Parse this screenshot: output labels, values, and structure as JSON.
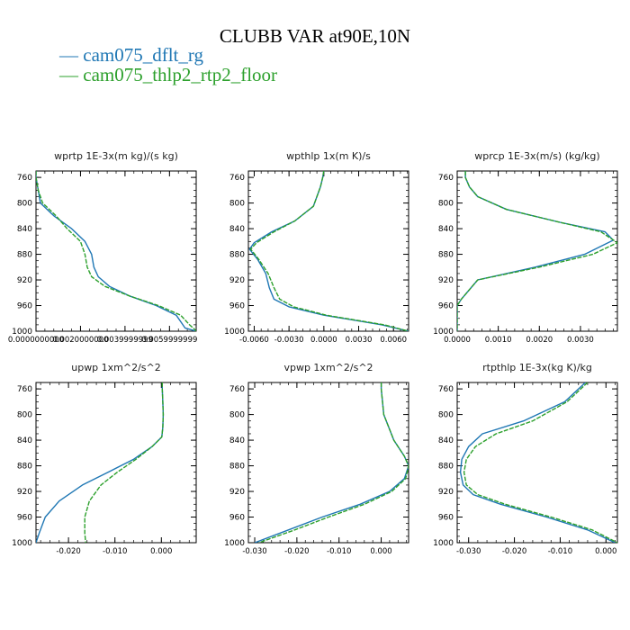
{
  "figure": {
    "title": "CLUBB VAR at90E,10N",
    "legend": [
      {
        "prefix": "— ",
        "label": "cam075_dflt_rg",
        "color": "#1f77b4"
      },
      {
        "prefix": "— ",
        "label": "cam075_thlp2_rtp2_floor",
        "color": "#2ca02c"
      }
    ]
  },
  "chart_data": [
    {
      "type": "line",
      "title": "wprtp  1E-3x(m kg)/(s kg)",
      "xlim": [
        0,
        0.0072
      ],
      "ylim": [
        1000,
        750
      ],
      "xticks": [
        0,
        0.002,
        0.004,
        0.006
      ],
      "xtick_labels": [
        "0.0000000000",
        "0.0020000000",
        "0.0039999999",
        "0.0059999999"
      ],
      "yticks": [
        760,
        800,
        840,
        880,
        920,
        960,
        1000
      ],
      "series": [
        {
          "name": "cam075_dflt_rg",
          "color": "#1f77b4",
          "dashed": false,
          "points": [
            [
              0.0,
              750
            ],
            [
              0.0,
              760
            ],
            [
              0.0001,
              780
            ],
            [
              0.0002,
              800
            ],
            [
              0.0008,
              820
            ],
            [
              0.0016,
              840
            ],
            [
              0.0022,
              860
            ],
            [
              0.0025,
              880
            ],
            [
              0.0026,
              900
            ],
            [
              0.0028,
              915
            ],
            [
              0.0033,
              930
            ],
            [
              0.0042,
              945
            ],
            [
              0.0054,
              960
            ],
            [
              0.0063,
              975
            ],
            [
              0.0066,
              990
            ],
            [
              0.0067,
              995
            ],
            [
              0.0072,
              1000
            ]
          ]
        },
        {
          "name": "cam075_thlp2_rtp2_floor",
          "color": "#2ca02c",
          "dashed": true,
          "points": [
            [
              0.0,
              750
            ],
            [
              0.0,
              760
            ],
            [
              0.0001,
              780
            ],
            [
              0.0003,
              800
            ],
            [
              0.0009,
              820
            ],
            [
              0.0014,
              840
            ],
            [
              0.002,
              860
            ],
            [
              0.0022,
              880
            ],
            [
              0.0023,
              900
            ],
            [
              0.0025,
              915
            ],
            [
              0.0031,
              930
            ],
            [
              0.0042,
              945
            ],
            [
              0.0055,
              960
            ],
            [
              0.0065,
              975
            ],
            [
              0.0069,
              990
            ],
            [
              0.0071,
              996
            ],
            [
              0.0072,
              1000
            ]
          ]
        }
      ]
    },
    {
      "type": "line",
      "title": "wpthlp  1x(m K)/s",
      "xlim": [
        -0.0065,
        0.0073
      ],
      "ylim": [
        1000,
        750
      ],
      "xticks": [
        -0.006,
        -0.003,
        0,
        0.003,
        0.006
      ],
      "xtick_labels": [
        "-0.0060",
        "-0.0030",
        "0.0000",
        "0.0030",
        "0.0060"
      ],
      "yticks": [
        760,
        800,
        840,
        880,
        920,
        960,
        1000
      ],
      "series": [
        {
          "name": "cam075_dflt_rg",
          "color": "#1f77b4",
          "dashed": false,
          "points": [
            [
              0.0,
              750
            ],
            [
              -0.0001,
              760
            ],
            [
              -0.0003,
              775
            ],
            [
              -0.0009,
              805
            ],
            [
              -0.0025,
              828
            ],
            [
              -0.0045,
              845
            ],
            [
              -0.006,
              862
            ],
            [
              -0.0064,
              872
            ],
            [
              -0.0057,
              888
            ],
            [
              -0.005,
              910
            ],
            [
              -0.0047,
              932
            ],
            [
              -0.0043,
              950
            ],
            [
              -0.003,
              962
            ],
            [
              0.0,
              975
            ],
            [
              0.005,
              990
            ],
            [
              0.0073,
              1000
            ]
          ]
        },
        {
          "name": "cam075_thlp2_rtp2_floor",
          "color": "#2ca02c",
          "dashed": true,
          "points": [
            [
              0.0,
              750
            ],
            [
              -0.0001,
              760
            ],
            [
              -0.0003,
              775
            ],
            [
              -0.0009,
              805
            ],
            [
              -0.0025,
              828
            ],
            [
              -0.0043,
              845
            ],
            [
              -0.0058,
              862
            ],
            [
              -0.0063,
              872
            ],
            [
              -0.0056,
              888
            ],
            [
              -0.0048,
              910
            ],
            [
              -0.0043,
              932
            ],
            [
              -0.0038,
              950
            ],
            [
              -0.0026,
              962
            ],
            [
              0.0002,
              975
            ],
            [
              0.0052,
              990
            ],
            [
              0.0073,
              1000
            ]
          ]
        }
      ]
    },
    {
      "type": "line",
      "title": "wprcp  1E-3x(m/s) (kg/kg)",
      "xlim": [
        0,
        0.0039
      ],
      "ylim": [
        1000,
        750
      ],
      "xticks": [
        0,
        0.001,
        0.002,
        0.003
      ],
      "xtick_labels": [
        "0.0000",
        "0.0010",
        "0.0020",
        "0.0030"
      ],
      "yticks": [
        760,
        800,
        840,
        880,
        920,
        960,
        1000
      ],
      "series": [
        {
          "name": "cam075_dflt_rg",
          "color": "#1f77b4",
          "dashed": false,
          "points": [
            [
              0.0002,
              750
            ],
            [
              0.0002,
              760
            ],
            [
              0.0003,
              775
            ],
            [
              0.0005,
              790
            ],
            [
              0.0012,
              810
            ],
            [
              0.0025,
              830
            ],
            [
              0.0036,
              845
            ],
            [
              0.0038,
              858
            ],
            [
              0.0031,
              880
            ],
            [
              0.0019,
              900
            ],
            [
              0.0005,
              920
            ],
            [
              0.0001,
              950
            ],
            [
              0.0,
              960
            ],
            [
              0.0,
              1000
            ]
          ]
        },
        {
          "name": "cam075_thlp2_rtp2_floor",
          "color": "#2ca02c",
          "dashed": true,
          "points": [
            [
              0.0002,
              750
            ],
            [
              0.0002,
              760
            ],
            [
              0.0003,
              775
            ],
            [
              0.0005,
              790
            ],
            [
              0.0012,
              810
            ],
            [
              0.0025,
              830
            ],
            [
              0.0035,
              845
            ],
            [
              0.0039,
              862
            ],
            [
              0.0033,
              880
            ],
            [
              0.002,
              900
            ],
            [
              0.0005,
              920
            ],
            [
              0.0001,
              950
            ],
            [
              0.0,
              960
            ],
            [
              0.0,
              1000
            ]
          ]
        }
      ]
    },
    {
      "type": "line",
      "title": "upwp  1xm^2/s^2",
      "xlim": [
        -0.027,
        0.0075
      ],
      "ylim": [
        1000,
        750
      ],
      "xticks": [
        -0.02,
        -0.01,
        0
      ],
      "xtick_labels": [
        "-0.020",
        "-0.010",
        "0.000"
      ],
      "yticks": [
        760,
        800,
        840,
        880,
        920,
        960,
        1000
      ],
      "series": [
        {
          "name": "cam075_dflt_rg",
          "color": "#1f77b4",
          "dashed": false,
          "points": [
            [
              0.0002,
              750
            ],
            [
              0.0002,
              760
            ],
            [
              0.0003,
              780
            ],
            [
              0.0004,
              800
            ],
            [
              0.0003,
              820
            ],
            [
              0.0001,
              835
            ],
            [
              -0.002,
              850
            ],
            [
              -0.006,
              870
            ],
            [
              -0.0115,
              890
            ],
            [
              -0.017,
              910
            ],
            [
              -0.022,
              935
            ],
            [
              -0.025,
              960
            ],
            [
              -0.0263,
              985
            ],
            [
              -0.027,
              1000
            ]
          ]
        },
        {
          "name": "cam075_thlp2_rtp2_floor",
          "color": "#2ca02c",
          "dashed": true,
          "points": [
            [
              0.0002,
              750
            ],
            [
              0.0002,
              760
            ],
            [
              0.0003,
              780
            ],
            [
              0.0004,
              800
            ],
            [
              0.0003,
              820
            ],
            [
              0.0001,
              835
            ],
            [
              -0.002,
              850
            ],
            [
              -0.0055,
              870
            ],
            [
              -0.0095,
              890
            ],
            [
              -0.013,
              910
            ],
            [
              -0.0155,
              935
            ],
            [
              -0.0165,
              960
            ],
            [
              -0.0165,
              985
            ],
            [
              -0.0163,
              1000
            ]
          ]
        }
      ]
    },
    {
      "type": "line",
      "title": "vpwp  1xm^2/s^2",
      "xlim": [
        -0.0315,
        0.0065
      ],
      "ylim": [
        1000,
        750
      ],
      "xticks": [
        -0.03,
        -0.02,
        -0.01,
        0
      ],
      "xtick_labels": [
        "-0.030",
        "-0.020",
        "-0.010",
        "0.000"
      ],
      "yticks": [
        760,
        800,
        840,
        880,
        920,
        960,
        1000
      ],
      "series": [
        {
          "name": "cam075_dflt_rg",
          "color": "#1f77b4",
          "dashed": false,
          "points": [
            [
              0.0,
              750
            ],
            [
              0.0,
              760
            ],
            [
              0.0006,
              800
            ],
            [
              0.003,
              840
            ],
            [
              0.0055,
              865
            ],
            [
              0.0065,
              880
            ],
            [
              0.0055,
              900
            ],
            [
              0.002,
              920
            ],
            [
              -0.005,
              940
            ],
            [
              -0.014,
              960
            ],
            [
              -0.022,
              980
            ],
            [
              -0.03,
              1000
            ]
          ]
        },
        {
          "name": "cam075_thlp2_rtp2_floor",
          "color": "#2ca02c",
          "dashed": true,
          "points": [
            [
              0.0,
              750
            ],
            [
              0.0,
              760
            ],
            [
              0.0006,
              800
            ],
            [
              0.003,
              840
            ],
            [
              0.0055,
              865
            ],
            [
              0.0065,
              880
            ],
            [
              0.0058,
              900
            ],
            [
              0.0025,
              920
            ],
            [
              -0.004,
              940
            ],
            [
              -0.0125,
              960
            ],
            [
              -0.0205,
              980
            ],
            [
              -0.029,
              1000
            ]
          ]
        }
      ]
    },
    {
      "type": "line",
      "title": "rtpthlp  1E-3x(kg K)/kg",
      "xlim": [
        -0.0325,
        0.0025
      ],
      "ylim": [
        1000,
        750
      ],
      "xticks": [
        -0.03,
        -0.02,
        -0.01,
        0
      ],
      "xtick_labels": [
        "-0.030",
        "-0.020",
        "-0.010",
        "0.000"
      ],
      "yticks": [
        760,
        800,
        840,
        880,
        920,
        960,
        1000
      ],
      "series": [
        {
          "name": "cam075_dflt_rg",
          "color": "#1f77b4",
          "dashed": false,
          "points": [
            [
              -0.0045,
              750
            ],
            [
              -0.006,
              760
            ],
            [
              -0.009,
              780
            ],
            [
              -0.018,
              810
            ],
            [
              -0.027,
              830
            ],
            [
              -0.03,
              850
            ],
            [
              -0.0315,
              870
            ],
            [
              -0.0318,
              890
            ],
            [
              -0.0312,
              910
            ],
            [
              -0.029,
              925
            ],
            [
              -0.023,
              940
            ],
            [
              -0.013,
              960
            ],
            [
              -0.004,
              980
            ],
            [
              0.002,
              1000
            ]
          ]
        },
        {
          "name": "cam075_thlp2_rtp2_floor",
          "color": "#2ca02c",
          "dashed": true,
          "points": [
            [
              -0.004,
              750
            ],
            [
              -0.0055,
              760
            ],
            [
              -0.0085,
              780
            ],
            [
              -0.016,
              810
            ],
            [
              -0.024,
              830
            ],
            [
              -0.0285,
              850
            ],
            [
              -0.0305,
              870
            ],
            [
              -0.031,
              890
            ],
            [
              -0.0305,
              910
            ],
            [
              -0.028,
              925
            ],
            [
              -0.022,
              940
            ],
            [
              -0.012,
              960
            ],
            [
              -0.003,
              980
            ],
            [
              0.0025,
              1000
            ]
          ]
        }
      ]
    }
  ]
}
